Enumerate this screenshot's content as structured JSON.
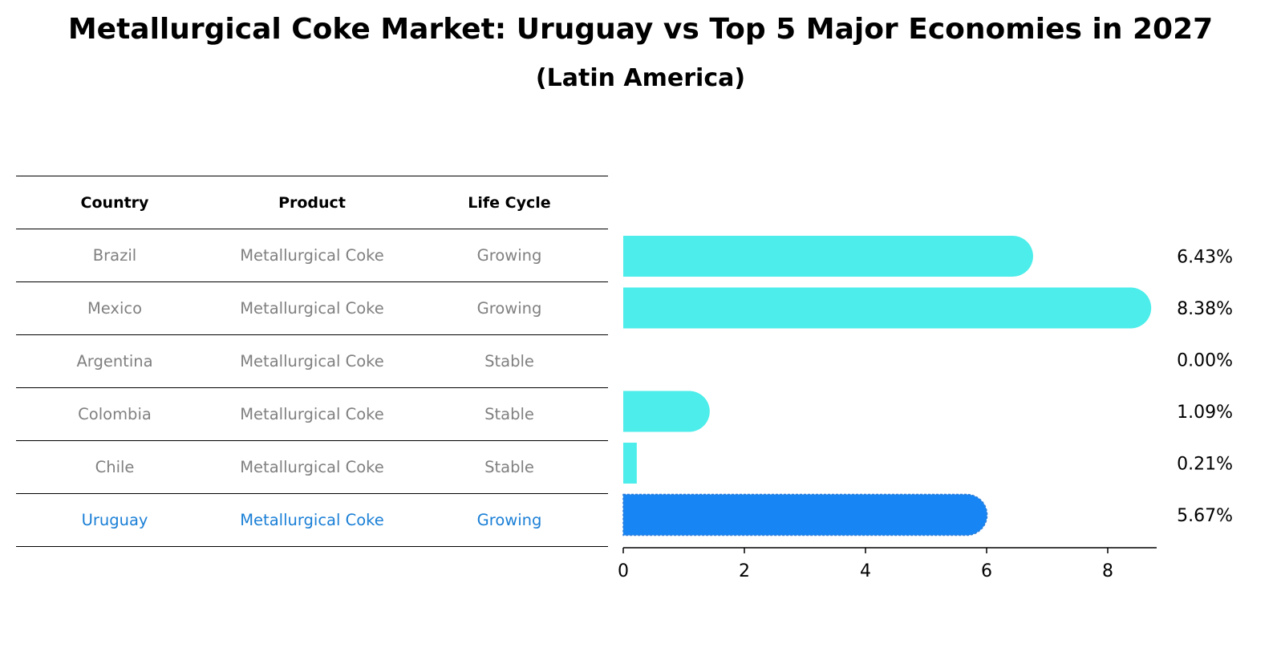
{
  "title": "Metallurgical Coke Market: Uruguay vs Top 5 Major Economies in 2027",
  "subtitle": "(Latin America)",
  "table": {
    "headers": [
      "Country",
      "Product",
      "Life Cycle"
    ],
    "rows": [
      {
        "country": "Brazil",
        "product": "Metallurgical Coke",
        "life_cycle": "Growing"
      },
      {
        "country": "Mexico",
        "product": "Metallurgical Coke",
        "life_cycle": "Growing"
      },
      {
        "country": "Argentina",
        "product": "Metallurgical Coke",
        "life_cycle": "Stable"
      },
      {
        "country": "Colombia",
        "product": "Metallurgical Coke",
        "life_cycle": "Stable"
      },
      {
        "country": "Chile",
        "product": "Metallurgical Coke",
        "life_cycle": "Stable"
      },
      {
        "country": "Uruguay",
        "product": "Metallurgical Coke",
        "life_cycle": "Growing"
      }
    ]
  },
  "chart_data": {
    "type": "bar",
    "orientation": "horizontal",
    "categories": [
      "Brazil",
      "Mexico",
      "Argentina",
      "Colombia",
      "Chile",
      "Uruguay"
    ],
    "values": [
      6.43,
      8.38,
      0.0,
      1.09,
      0.21,
      5.67
    ],
    "value_labels": [
      "6.43%",
      "8.38%",
      "0.00%",
      "1.09%",
      "0.21%",
      "5.67%"
    ],
    "highlight": "Uruguay",
    "xlim": [
      0,
      8.8
    ],
    "xticks": [
      0,
      2,
      4,
      6,
      8
    ],
    "xlabel": "",
    "ylabel": "",
    "colors": {
      "default": "#4cedea",
      "highlight": "#1785f3",
      "text_muted": "#808080",
      "text_highlight": "#1a7fd6"
    }
  }
}
